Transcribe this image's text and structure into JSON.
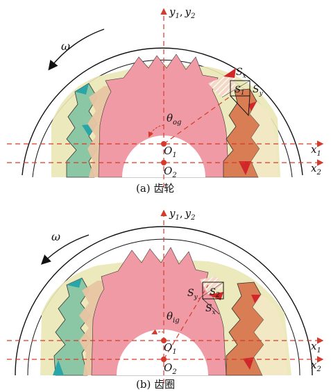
{
  "colors": {
    "axis": "#d63a2b",
    "pink_gear": "#ef9aa5",
    "light_pink": "#f6c3c3",
    "yellow": "#eae7b5",
    "peach": "#e8c5a3",
    "green": "#8cc7a5",
    "teal": "#2aa6a8",
    "orange": "#d87d54",
    "red": "#d0282a",
    "outline": "#222222"
  },
  "panel_a": {
    "caption": "(a) 齿轮",
    "axis_y": {
      "main": "y",
      "sub1": "1",
      "comma": ",",
      "main2": "y",
      "sub2": "2"
    },
    "axis_x1": {
      "main": "x",
      "sub": "1"
    },
    "axis_x2": {
      "main": "x",
      "sub": "2"
    },
    "omega": "ω",
    "theta": {
      "main": "θ",
      "sub": "og"
    },
    "o1": {
      "main": "O",
      "sub": "1"
    },
    "o2": {
      "main": "O",
      "sub": "2"
    },
    "sx": {
      "main": "S",
      "sub": "x"
    },
    "s1": {
      "main": "S",
      "sub": "1"
    },
    "sy": {
      "main": "S",
      "sub": "y"
    }
  },
  "panel_b": {
    "caption": "(b) 齿圈",
    "axis_y": {
      "main": "y",
      "sub1": "1",
      "comma": ",",
      "main2": "y",
      "sub2": "2"
    },
    "axis_x1": {
      "main": "x",
      "sub": "1"
    },
    "axis_x2": {
      "main": "x",
      "sub": "2"
    },
    "omega": "ω",
    "theta": {
      "main": "θ",
      "sub": "ig"
    },
    "o1": {
      "main": "O",
      "sub": "1"
    },
    "o2": {
      "main": "O",
      "sub": "2"
    },
    "sy": {
      "main": "S",
      "sub": "y"
    },
    "s2": {
      "main": "S",
      "sub": "2"
    },
    "sx": {
      "main": "S",
      "sub": "x"
    }
  }
}
